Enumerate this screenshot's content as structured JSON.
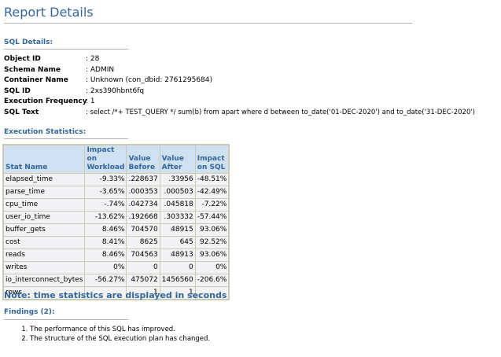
{
  "report_title": "Report Details",
  "sql_details": {
    "heading": "SQL Details:",
    "fields": [
      {
        "label": "Object ID",
        "value": ": 28"
      },
      {
        "label": "Schema Name",
        "value": ": ADMIN"
      },
      {
        "label": "Container Name",
        "value": ": Unknown (con_dbid: 2761295684)"
      },
      {
        "label": "SQL ID",
        "value": ": 2xs390hbnt6fq"
      },
      {
        "label": "Execution Frequency",
        "value": ": 1"
      },
      {
        "label": "SQL Text",
        "value": ": select /*+ TEST_QUERY */ sum(b) from apart where d between to_date('01-DEC-2020') and to_date('31-DEC-2020')"
      }
    ]
  },
  "execution_statistics": {
    "heading": "Execution Statistics:",
    "headers": [
      "Stat Name",
      "Impact on Workload",
      "Value Before",
      "Value After",
      "Impact on SQL"
    ],
    "rows": [
      [
        "elapsed_time",
        "-9.33%",
        ".228637",
        ".33956",
        "-48.51%"
      ],
      [
        "parse_time",
        "-3.65%",
        ".000353",
        ".000503",
        "-42.49%"
      ],
      [
        "cpu_time",
        "-.74%",
        ".042734",
        ".045818",
        "-7.22%"
      ],
      [
        "user_io_time",
        "-13.62%",
        ".192668",
        ".303332",
        "-57.44%"
      ],
      [
        "buffer_gets",
        "8.46%",
        "704570",
        "48915",
        "93.06%"
      ],
      [
        "cost",
        "8.41%",
        "8625",
        "645",
        "92.52%"
      ],
      [
        "reads",
        "8.46%",
        "704563",
        "48913",
        "93.06%"
      ],
      [
        "writes",
        "0%",
        "0",
        "0",
        "0%"
      ],
      [
        "io_interconnect_bytes",
        "-56.27%",
        "475072",
        "1456560",
        "-206.6%"
      ],
      [
        "rows",
        "",
        "1",
        "1",
        ""
      ]
    ]
  },
  "note": "Note: time statistics are displayed in seconds",
  "findings": {
    "heading": "Findings (2):",
    "items": [
      "The performance of this SQL has improved.",
      "The structure of the SQL execution plan has changed."
    ]
  }
}
